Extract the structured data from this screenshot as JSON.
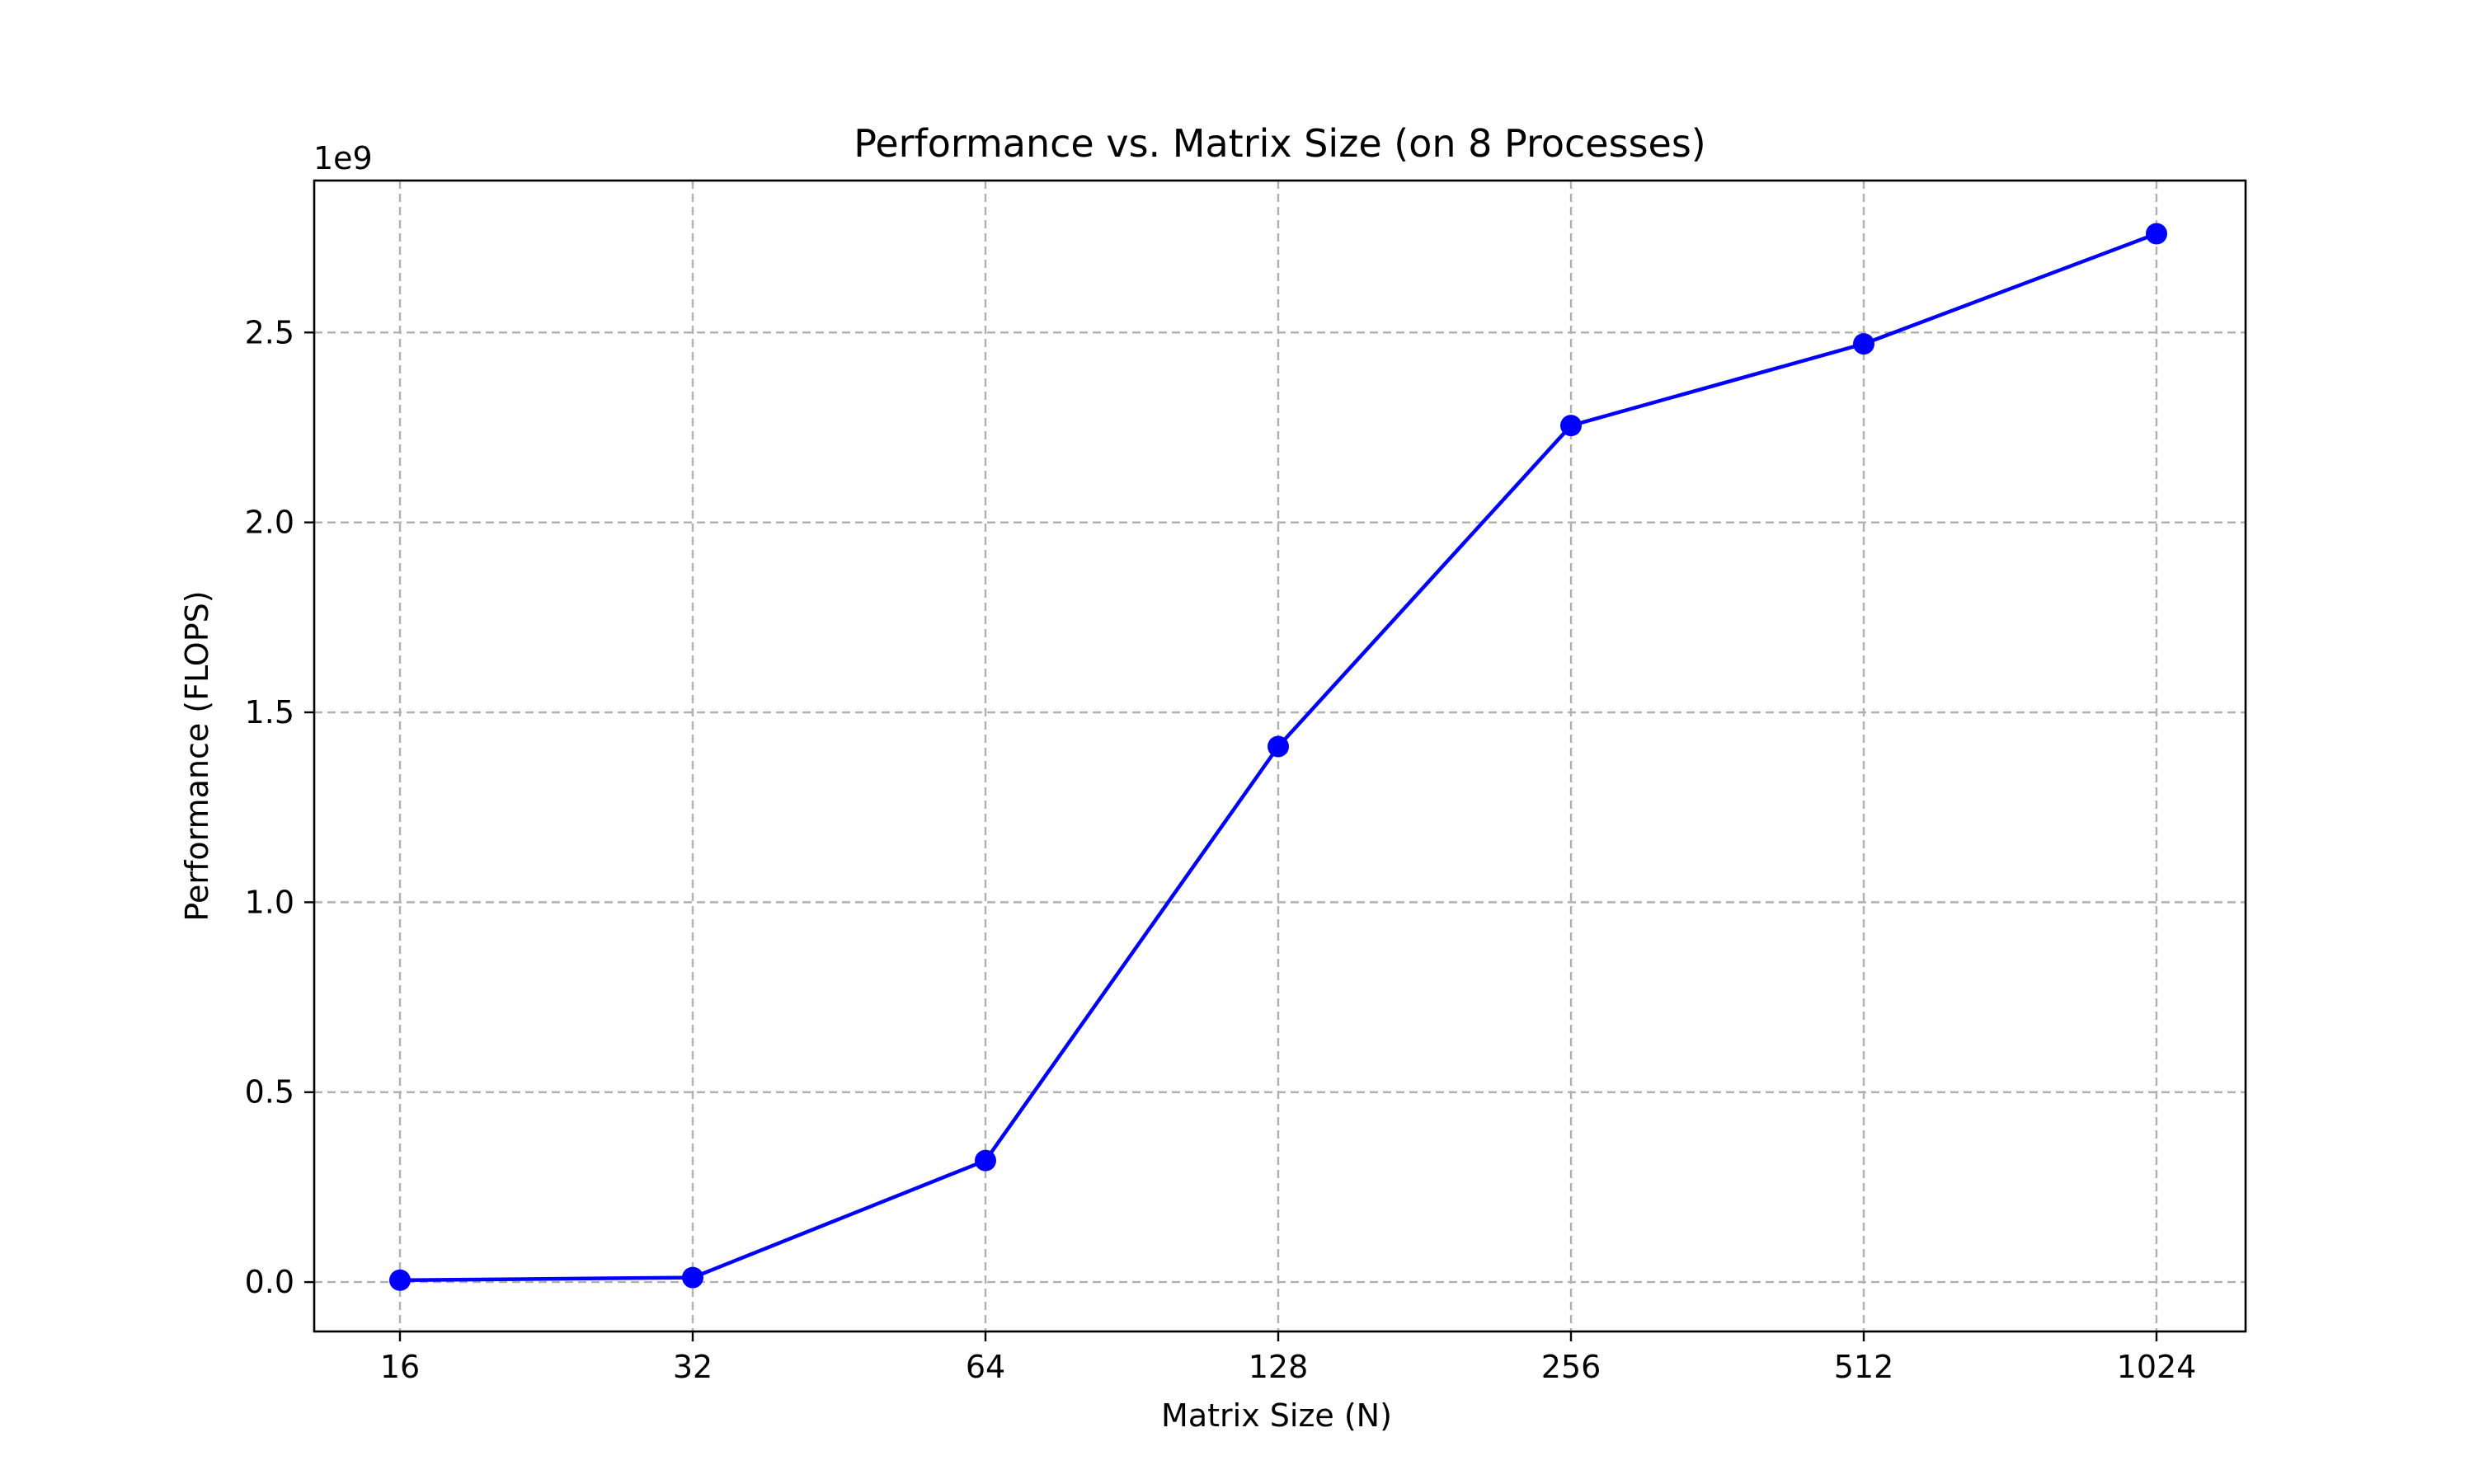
{
  "chart_data": {
    "type": "line",
    "title": "Performance vs. Matrix Size (on 8 Processes)",
    "xlabel": "Matrix Size (N)",
    "ylabel": "Performance (FLOPS)",
    "y_offset_label": "1e9",
    "x_scale": "log2",
    "categories": [
      "16",
      "32",
      "64",
      "128",
      "256",
      "512",
      "1024"
    ],
    "x": [
      16,
      32,
      64,
      128,
      256,
      512,
      1024
    ],
    "y_ticks": [
      0.0,
      0.5,
      1.0,
      1.5,
      2.0,
      2.5
    ],
    "y_tick_labels": [
      "0.0",
      "0.5",
      "1.0",
      "1.5",
      "2.0",
      "2.5"
    ],
    "ylim": [
      -0.13,
      2.9
    ],
    "grid": true,
    "series": [
      {
        "values": [
          0.005,
          0.012,
          0.32,
          1.41,
          2.255,
          2.47,
          2.76
        ],
        "color": "#0000ff",
        "marker": "circle"
      }
    ]
  }
}
